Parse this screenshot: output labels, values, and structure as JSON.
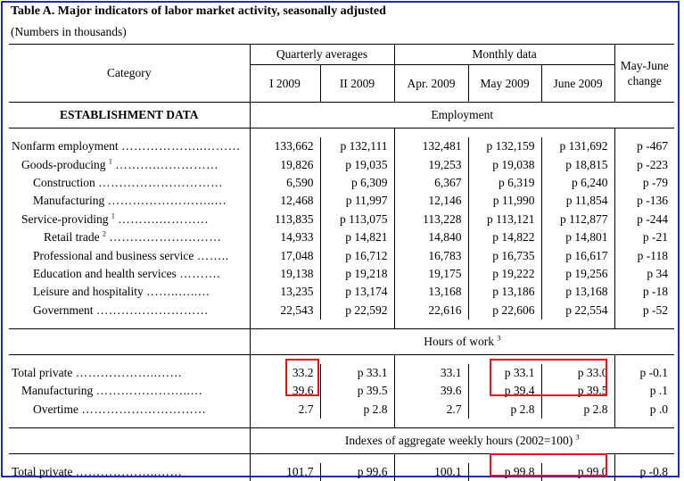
{
  "title": "Table A.  Major indicators of labor market activity, seasonally adjusted",
  "subtitle": "(Numbers in thousands)",
  "header": {
    "category": "Category",
    "quarterly": "Quarterly averages",
    "monthly": "Monthly data",
    "change": "May-June change",
    "cols": [
      "I 2009",
      "II 2009",
      "Apr. 2009",
      "May 2009",
      "June 2009"
    ]
  },
  "sections": {
    "establishment": "ESTABLISHMENT DATA",
    "employment": "Employment",
    "hours": "Hours of work",
    "hours_note": "3",
    "indexes": "Indexes of aggregate weekly hours (2002=100)",
    "indexes_note": "3"
  },
  "employment_rows": [
    {
      "label": "Nonfarm employment",
      "dots": "………………..………",
      "note": "",
      "values": [
        "133,662",
        "p 132,111",
        "132,481",
        "p 132,159",
        "p 131,692",
        "p -467"
      ]
    },
    {
      "label": "Goods-producing",
      "dots": "……….……………",
      "note": "1",
      "values": [
        "19,826",
        "p 19,035",
        "19,253",
        "p 19,038",
        "p 18,815",
        "p -223"
      ]
    },
    {
      "label": "Construction",
      "dots": "…………………………",
      "note": "",
      "values": [
        "6,590",
        "p 6,309",
        "6,367",
        "p 6,319",
        "p 6,240",
        "p -79"
      ]
    },
    {
      "label": "Manufacturing",
      "dots": "……………………..…",
      "note": "",
      "values": [
        "12,468",
        "p 11,997",
        "12,146",
        "p 11,990",
        "p 11,854",
        "p -136"
      ]
    },
    {
      "label": "Service-providing",
      "dots": "……….…………",
      "note": "1",
      "values": [
        "113,835",
        "p 113,075",
        "113,228",
        "p 113,121",
        "p 112,877",
        "p -244"
      ]
    },
    {
      "label": "Retail trade",
      "dots": "………………………",
      "note": "2",
      "values": [
        "14,933",
        "p 14,821",
        "14,840",
        "p 14,822",
        "p 14,801",
        "p -21"
      ]
    },
    {
      "label": "Professional and business service",
      "dots": "……..",
      "note": "",
      "values": [
        "17,048",
        "p 16,712",
        "16,783",
        "p 16,735",
        "p 16,617",
        "p -118"
      ]
    },
    {
      "label": "Education and health services",
      "dots": "……….",
      "note": "",
      "values": [
        "19,138",
        "p 19,218",
        "19,175",
        "p 19,222",
        "p 19,256",
        "p 34"
      ]
    },
    {
      "label": "Leisure and hospitality",
      "dots": "……..…..…",
      "note": "",
      "values": [
        "13,235",
        "p 13,174",
        "13,168",
        "p 13,186",
        "p 13,168",
        "p -18"
      ]
    },
    {
      "label": "Government",
      "dots": "………………………",
      "note": "",
      "values": [
        "22,543",
        "p 22,592",
        "22,616",
        "p 22,606",
        "p 22,554",
        "p -52"
      ]
    }
  ],
  "hours_rows": [
    {
      "label": "Total private",
      "dots": "………………..……",
      "note": "",
      "values": [
        "33.2",
        "p 33.1",
        "33.1",
        "p 33.1",
        "p 33.0",
        "p -0.1"
      ]
    },
    {
      "label": "Manufacturing",
      "dots": "…………………..…",
      "note": "",
      "values": [
        "39.6",
        "p 39.5",
        "39.6",
        "p 39.4",
        "p 39.5",
        "p .1"
      ]
    },
    {
      "label": "Overtime",
      "dots": "…………………………",
      "note": "",
      "values": [
        "2.7",
        "p 2.8",
        "2.7",
        "p 2.8",
        "p 2.8",
        "p .0"
      ]
    }
  ],
  "index_rows": [
    {
      "label": "Total private",
      "dots": "………………..……",
      "note": "",
      "values": [
        "101.7",
        "p 99.6",
        "100.1",
        "p 99.8",
        "p 99.0",
        "p -0.8"
      ]
    }
  ],
  "colors": {
    "frame": "#1f2fa8",
    "highlight": "#e8101a"
  }
}
